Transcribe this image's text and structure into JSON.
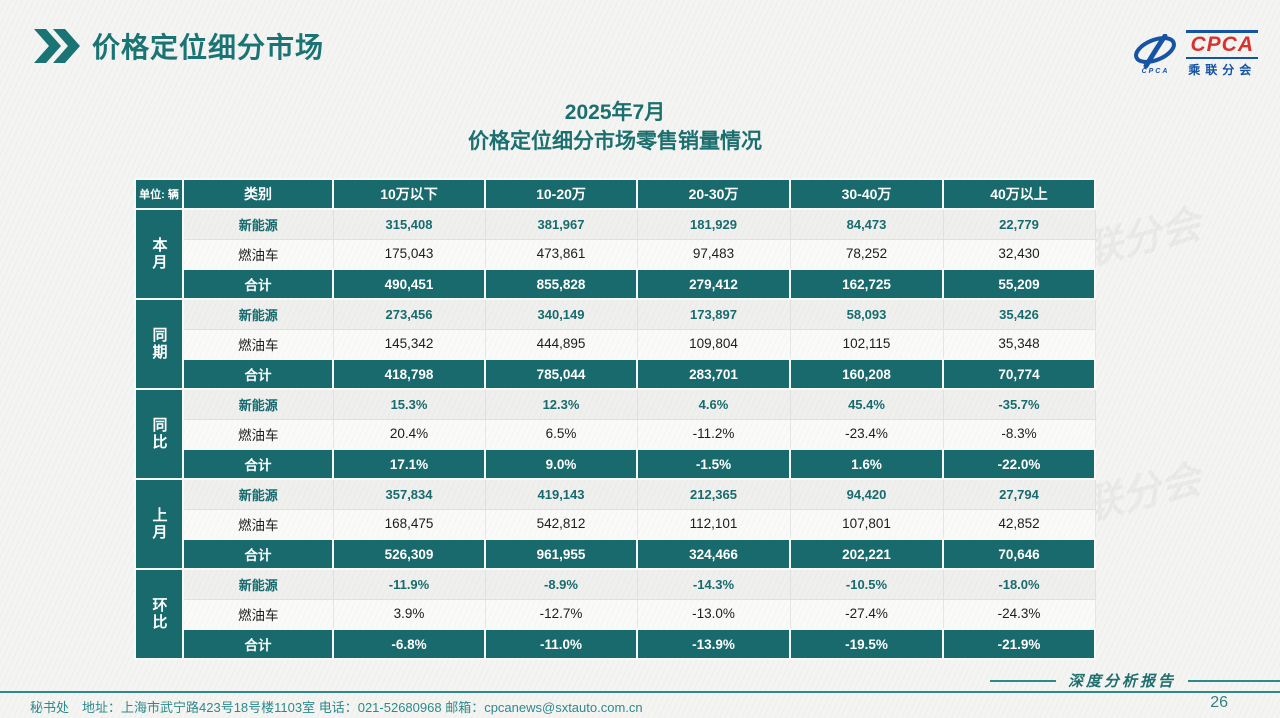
{
  "header": {
    "title": "价格定位细分市场",
    "logo": {
      "abbr": "CPCA",
      "abbr_small": "CPCA",
      "cn": "乘联分会"
    }
  },
  "subtitle": {
    "line1": "2025年7月",
    "line2": "价格定位细分市场零售销量情况"
  },
  "watermark": {
    "text": "CPCA 乘联分会"
  },
  "table": {
    "unit_label": "单位: 辆",
    "columns": [
      "类别",
      "10万以下",
      "10-20万",
      "20-30万",
      "30-40万",
      "40万以上"
    ],
    "groups": [
      {
        "name": "本月",
        "rows": [
          {
            "label": "新能源",
            "type": "nev",
            "values": [
              "315,408",
              "381,967",
              "181,929",
              "84,473",
              "22,779"
            ]
          },
          {
            "label": "燃油车",
            "type": "ice",
            "values": [
              "175,043",
              "473,861",
              "97,483",
              "78,252",
              "32,430"
            ]
          },
          {
            "label": "合计",
            "type": "total",
            "values": [
              "490,451",
              "855,828",
              "279,412",
              "162,725",
              "55,209"
            ]
          }
        ]
      },
      {
        "name": "同期",
        "rows": [
          {
            "label": "新能源",
            "type": "nev",
            "values": [
              "273,456",
              "340,149",
              "173,897",
              "58,093",
              "35,426"
            ]
          },
          {
            "label": "燃油车",
            "type": "ice",
            "values": [
              "145,342",
              "444,895",
              "109,804",
              "102,115",
              "35,348"
            ]
          },
          {
            "label": "合计",
            "type": "total",
            "values": [
              "418,798",
              "785,044",
              "283,701",
              "160,208",
              "70,774"
            ]
          }
        ]
      },
      {
        "name": "同比",
        "rows": [
          {
            "label": "新能源",
            "type": "nev",
            "values": [
              "15.3%",
              "12.3%",
              "4.6%",
              "45.4%",
              "-35.7%"
            ]
          },
          {
            "label": "燃油车",
            "type": "ice",
            "values": [
              "20.4%",
              "6.5%",
              "-11.2%",
              "-23.4%",
              "-8.3%"
            ]
          },
          {
            "label": "合计",
            "type": "total",
            "values": [
              "17.1%",
              "9.0%",
              "-1.5%",
              "1.6%",
              "-22.0%"
            ]
          }
        ]
      },
      {
        "name": "上月",
        "rows": [
          {
            "label": "新能源",
            "type": "nev",
            "values": [
              "357,834",
              "419,143",
              "212,365",
              "94,420",
              "27,794"
            ]
          },
          {
            "label": "燃油车",
            "type": "ice",
            "values": [
              "168,475",
              "542,812",
              "112,101",
              "107,801",
              "42,852"
            ]
          },
          {
            "label": "合计",
            "type": "total",
            "values": [
              "526,309",
              "961,955",
              "324,466",
              "202,221",
              "70,646"
            ]
          }
        ]
      },
      {
        "name": "环比",
        "rows": [
          {
            "label": "新能源",
            "type": "nev",
            "values": [
              "-11.9%",
              "-8.9%",
              "-14.3%",
              "-10.5%",
              "-18.0%"
            ]
          },
          {
            "label": "燃油车",
            "type": "ice",
            "values": [
              "3.9%",
              "-12.7%",
              "-13.0%",
              "-27.4%",
              "-24.3%"
            ]
          },
          {
            "label": "合计",
            "type": "total",
            "values": [
              "-6.8%",
              "-11.0%",
              "-13.9%",
              "-19.5%",
              "-21.9%"
            ]
          }
        ]
      }
    ]
  },
  "footer": {
    "report_label": "深度分析报告",
    "page_number": "26",
    "contact": "秘书处　地址：上海市武宁路423号18号楼1103室  电话：021-52680968   邮箱：cpcanews@sxtauto.com.cn"
  },
  "colors": {
    "teal": "#196a6d",
    "title_teal": "#1a7474",
    "logo_blue": "#1553a4",
    "logo_red": "#d9312e"
  }
}
